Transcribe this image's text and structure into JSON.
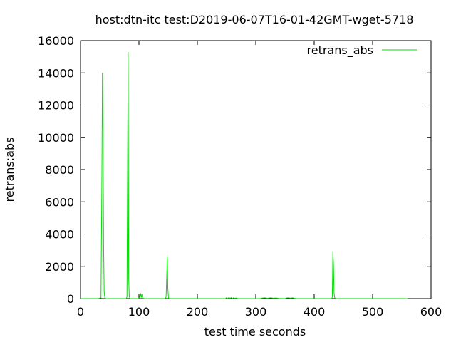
{
  "chart_data": {
    "type": "line",
    "title": "host:dtn-itc test:D2019-06-07T16-01-42GMT-wget-5718",
    "xlabel": "test time seconds",
    "ylabel": "retrans:abs",
    "xlim": [
      0,
      600
    ],
    "ylim": [
      0,
      16000
    ],
    "x_ticks": [
      0,
      100,
      200,
      300,
      400,
      500,
      600
    ],
    "y_ticks": [
      0,
      2000,
      4000,
      6000,
      8000,
      10000,
      12000,
      14000,
      16000
    ],
    "x_tick_labels": [
      "0",
      "100",
      "200",
      "300",
      "400",
      "500",
      "600"
    ],
    "y_tick_labels": [
      "0",
      "2000",
      "4000",
      "6000",
      "8000",
      "10000",
      "12000",
      "14000",
      "16000"
    ],
    "grid": false,
    "legend_position": "top-right",
    "series": [
      {
        "name": "retrans_abs",
        "color": "#00dd00",
        "x": [
          0,
          10,
          20,
          30,
          35,
          36.5,
          37.5,
          38.5,
          39.5,
          40.5,
          41.5,
          42.5,
          44,
          50,
          60,
          70,
          78,
          79.5,
          80.5,
          81.5,
          82.5,
          83.5,
          85,
          90,
          100,
          102,
          103,
          104,
          105,
          106,
          107,
          108,
          110,
          120,
          130,
          140,
          145,
          146.5,
          147.5,
          148.5,
          149.5,
          150.5,
          151.5,
          153,
          160,
          180,
          200,
          220,
          240,
          248,
          250,
          252,
          254,
          256,
          258,
          260,
          262,
          264,
          266,
          270,
          280,
          300,
          308,
          310,
          315,
          320,
          325,
          330,
          335,
          340,
          350,
          352,
          355,
          358,
          360,
          363,
          366,
          370,
          380,
          400,
          420,
          430,
          431,
          432,
          433,
          434,
          435,
          436,
          438,
          445,
          450,
          460,
          480,
          500,
          520,
          540,
          560
        ],
        "y": [
          0,
          0,
          0,
          0,
          50,
          7000,
          14000,
          10100,
          3300,
          400,
          80,
          20,
          0,
          0,
          0,
          0,
          0,
          100,
          7700,
          15300,
          1200,
          100,
          0,
          0,
          0,
          150,
          330,
          60,
          260,
          80,
          40,
          10,
          0,
          0,
          0,
          0,
          0,
          100,
          1300,
          2600,
          600,
          80,
          10,
          0,
          0,
          0,
          0,
          0,
          0,
          0,
          60,
          10,
          60,
          20,
          60,
          10,
          50,
          20,
          40,
          0,
          0,
          0,
          0,
          30,
          50,
          20,
          50,
          30,
          40,
          10,
          0,
          30,
          50,
          40,
          30,
          50,
          20,
          0,
          0,
          0,
          0,
          0,
          100,
          2950,
          2100,
          350,
          60,
          10,
          0,
          0,
          0,
          0,
          0,
          0,
          0,
          0,
          0
        ]
      }
    ]
  }
}
